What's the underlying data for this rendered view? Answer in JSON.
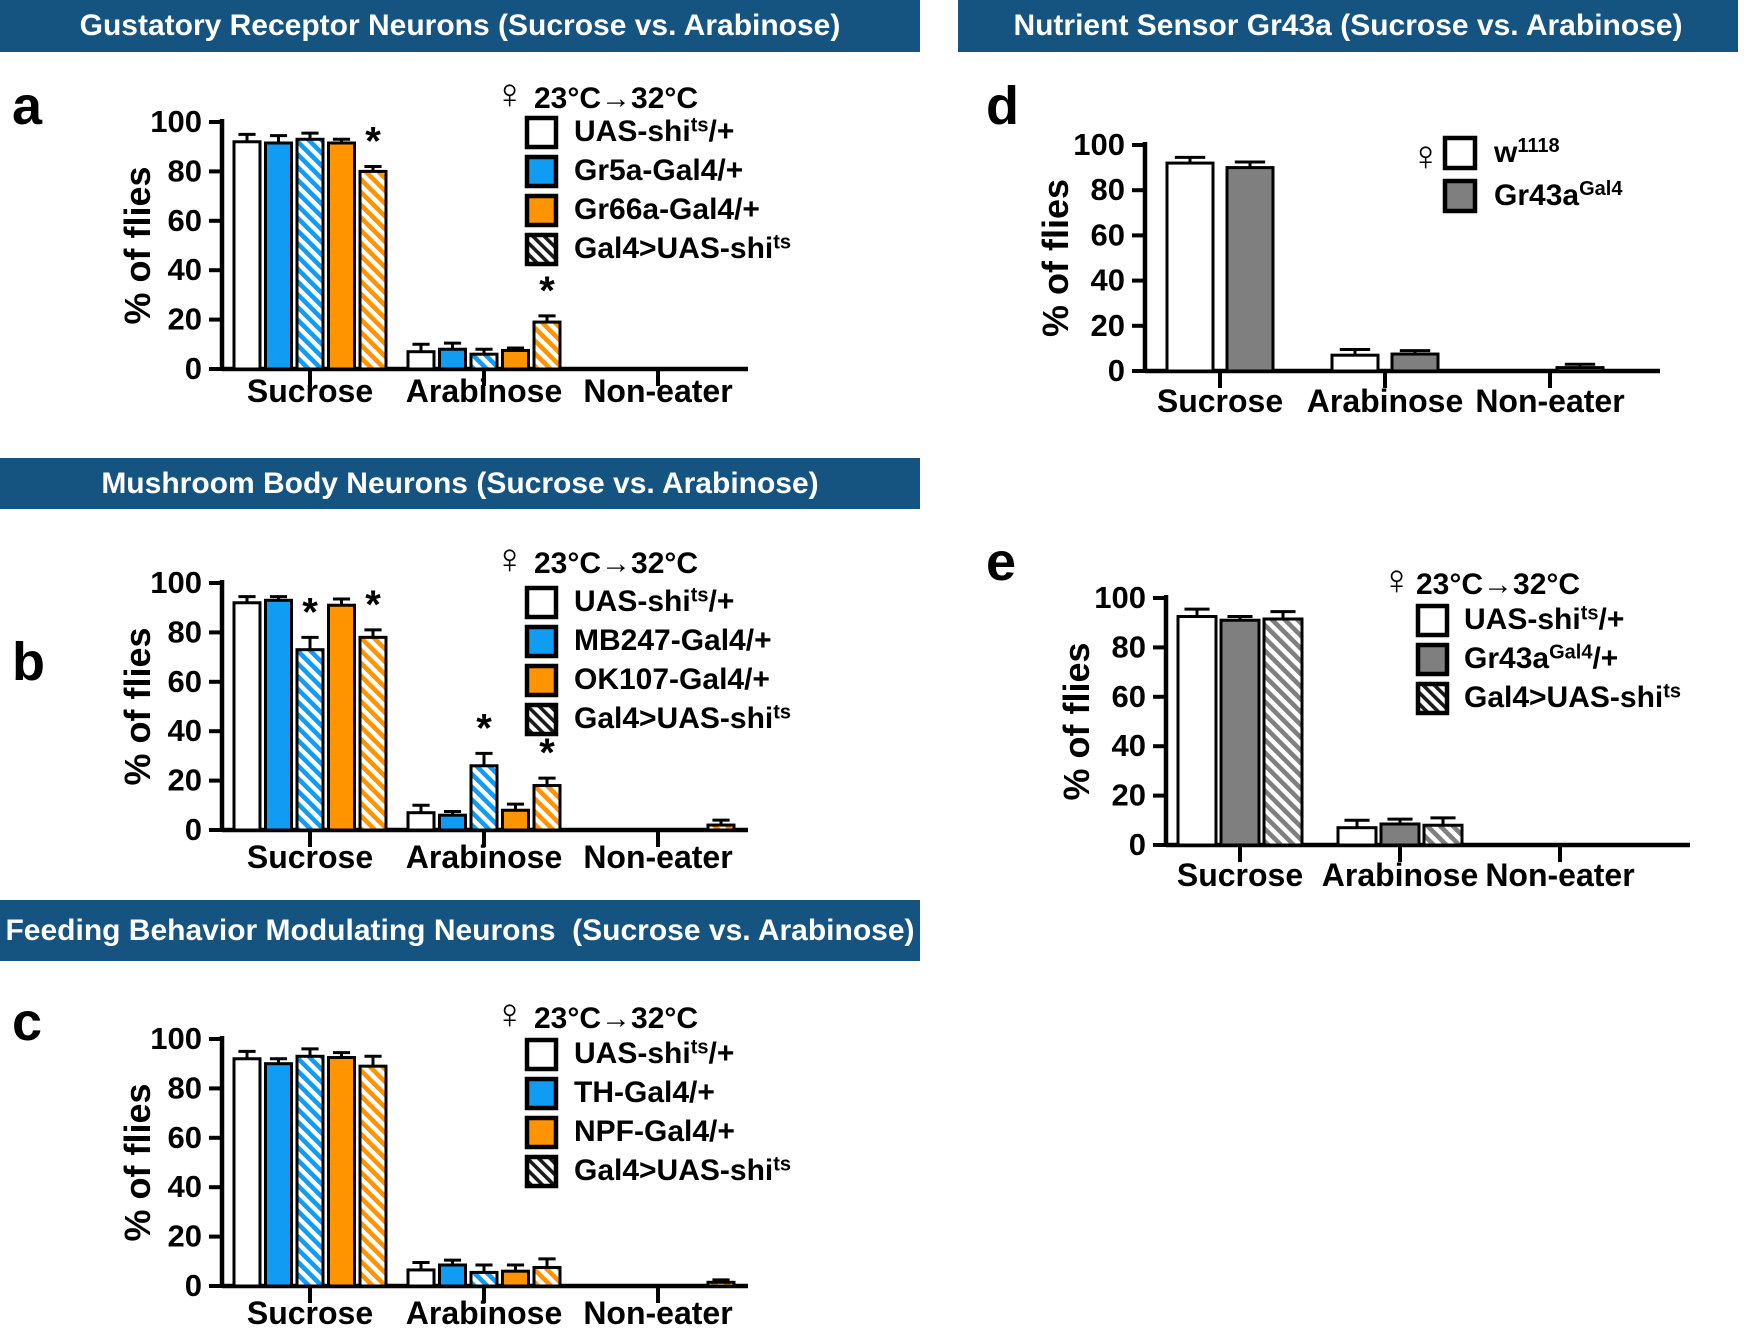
{
  "page": {
    "background": "#ffffff",
    "banner_color": "#155380",
    "banner_text_color": "#ffffff",
    "sig_marker": "*",
    "colors": {
      "blue": "#119CF4",
      "orange": "#FF9300",
      "gray": "#7F7F7F",
      "white": "#FFFFFF",
      "outline": "#000000"
    }
  },
  "chart_data": [
    {
      "type": "bar",
      "panel": "a",
      "title": "Gustatory Receptor Neurons (Sucrose vs. Arabinose)",
      "ylabel": "% of flies",
      "ylim": [
        0,
        100
      ],
      "yticks": [
        0,
        20,
        40,
        60,
        80,
        100
      ],
      "categories": [
        "Sucrose",
        "Arabinose",
        "Non-eater"
      ],
      "legend": {
        "female_symbol": "♀",
        "header": "23°C→32°C",
        "entries": [
          {
            "label": "UAS-shi^{ts}/+",
            "style": "white"
          },
          {
            "label": "Gr5a-Gal4/+",
            "style": "blue"
          },
          {
            "label": "Gr66a-Gal4/+",
            "style": "orange"
          },
          {
            "label": "Gal4>UAS-shi^{ts}",
            "style": "black-hatch"
          }
        ]
      },
      "series": [
        {
          "name": "UAS-shi^{ts}/+",
          "style": "white",
          "values": [
            92,
            7,
            0
          ],
          "errors": [
            3,
            3,
            0
          ],
          "sig": [
            false,
            false,
            false
          ]
        },
        {
          "name": "Gr5a-Gal4/+",
          "style": "blue",
          "values": [
            91.5,
            8,
            0
          ],
          "errors": [
            3,
            2.5,
            0
          ],
          "sig": [
            false,
            false,
            false
          ]
        },
        {
          "name": "Gr5a-Gal4>UAS-shi^{ts}",
          "style": "blue-hatch",
          "values": [
            93,
            6,
            0
          ],
          "errors": [
            2.5,
            2,
            0
          ],
          "sig": [
            false,
            false,
            false
          ]
        },
        {
          "name": "Gr66a-Gal4/+",
          "style": "orange",
          "values": [
            91.5,
            7.5,
            0
          ],
          "errors": [
            1.5,
            1,
            0
          ],
          "sig": [
            false,
            false,
            false
          ]
        },
        {
          "name": "Gr66a-Gal4>UAS-shi^{ts}",
          "style": "orange-hatch",
          "values": [
            80,
            19,
            0
          ],
          "errors": [
            2,
            2.5,
            0
          ],
          "sig": [
            true,
            true,
            false
          ]
        }
      ]
    },
    {
      "type": "bar",
      "panel": "b",
      "title": "Mushroom Body Neurons (Sucrose vs. Arabinose)",
      "ylabel": "% of flies",
      "ylim": [
        0,
        100
      ],
      "yticks": [
        0,
        20,
        40,
        60,
        80,
        100
      ],
      "categories": [
        "Sucrose",
        "Arabinose",
        "Non-eater"
      ],
      "legend": {
        "female_symbol": "♀",
        "header": "23°C→32°C",
        "entries": [
          {
            "label": "UAS-shi^{ts}/+",
            "style": "white"
          },
          {
            "label": "MB247-Gal4/+",
            "style": "blue"
          },
          {
            "label": "OK107-Gal4/+",
            "style": "orange"
          },
          {
            "label": "Gal4>UAS-shi^{ts}",
            "style": "black-hatch"
          }
        ]
      },
      "series": [
        {
          "name": "UAS-shi^{ts}/+",
          "style": "white",
          "values": [
            92,
            7,
            0
          ],
          "errors": [
            2.5,
            3,
            0
          ],
          "sig": [
            false,
            false,
            false
          ]
        },
        {
          "name": "MB247-Gal4/+",
          "style": "blue",
          "values": [
            93,
            6,
            0
          ],
          "errors": [
            1.5,
            1.5,
            0
          ],
          "sig": [
            false,
            false,
            false
          ]
        },
        {
          "name": "MB247-Gal4>UAS-shi^{ts}",
          "style": "blue-hatch",
          "values": [
            73,
            26,
            0
          ],
          "errors": [
            5,
            5,
            0
          ],
          "sig": [
            true,
            true,
            false
          ]
        },
        {
          "name": "OK107-Gal4/+",
          "style": "orange",
          "values": [
            91,
            8,
            0
          ],
          "errors": [
            2.5,
            2.5,
            0
          ],
          "sig": [
            false,
            false,
            false
          ]
        },
        {
          "name": "OK107-Gal4>UAS-shi^{ts}",
          "style": "orange-hatch",
          "values": [
            78,
            18,
            2
          ],
          "errors": [
            3,
            3,
            2
          ],
          "sig": [
            true,
            true,
            false
          ]
        }
      ]
    },
    {
      "type": "bar",
      "panel": "c",
      "title": "Feeding Behavior Modulating Neurons  (Sucrose vs. Arabinose)",
      "ylabel": "% of flies",
      "ylim": [
        0,
        100
      ],
      "yticks": [
        0,
        20,
        40,
        60,
        80,
        100
      ],
      "categories": [
        "Sucrose",
        "Arabinose",
        "Non-eater"
      ],
      "legend": {
        "female_symbol": "♀",
        "header": "23°C→32°C",
        "entries": [
          {
            "label": "UAS-shi^{ts}/+",
            "style": "white"
          },
          {
            "label": "TH-Gal4/+",
            "style": "blue"
          },
          {
            "label": "NPF-Gal4/+",
            "style": "orange"
          },
          {
            "label": "Gal4>UAS-shi^{ts}",
            "style": "black-hatch"
          }
        ]
      },
      "series": [
        {
          "name": "UAS-shi^{ts}/+",
          "style": "white",
          "values": [
            92,
            6.5,
            0
          ],
          "errors": [
            3,
            3,
            0
          ],
          "sig": [
            false,
            false,
            false
          ]
        },
        {
          "name": "TH-Gal4/+",
          "style": "blue",
          "values": [
            90,
            8.5,
            0
          ],
          "errors": [
            2,
            2,
            0
          ],
          "sig": [
            false,
            false,
            false
          ]
        },
        {
          "name": "TH-Gal4>UAS-shi^{ts}",
          "style": "blue-hatch",
          "values": [
            93,
            5.5,
            0
          ],
          "errors": [
            3,
            3,
            0
          ],
          "sig": [
            false,
            false,
            false
          ]
        },
        {
          "name": "NPF-Gal4/+",
          "style": "orange",
          "values": [
            92.5,
            6,
            0
          ],
          "errors": [
            2,
            2.5,
            0
          ],
          "sig": [
            false,
            false,
            false
          ]
        },
        {
          "name": "NPF-Gal4>UAS-shi^{ts}",
          "style": "orange-hatch",
          "values": [
            89,
            7.5,
            1.5
          ],
          "errors": [
            4,
            3.5,
            1
          ],
          "sig": [
            false,
            false,
            false
          ]
        }
      ]
    },
    {
      "type": "bar",
      "panel": "d",
      "title": "Nutrient Sensor Gr43a (Sucrose vs. Arabinose)",
      "ylabel": "% of flies",
      "ylim": [
        0,
        100
      ],
      "yticks": [
        0,
        20,
        40,
        60,
        80,
        100
      ],
      "categories": [
        "Sucrose",
        "Arabinose",
        "Non-eater"
      ],
      "legend": {
        "female_symbol": "♀",
        "header": "",
        "entries": [
          {
            "label": "w^{1118}",
            "style": "white"
          },
          {
            "label": "Gr43a^{Gal4}",
            "style": "gray"
          }
        ]
      },
      "series": [
        {
          "name": "w^{1118}",
          "style": "white",
          "values": [
            92,
            7,
            0
          ],
          "errors": [
            2.5,
            2.5,
            0
          ],
          "sig": [
            false,
            false,
            false
          ]
        },
        {
          "name": "Gr43a^{Gal4}",
          "style": "gray",
          "values": [
            90,
            7.5,
            1.5
          ],
          "errors": [
            2.5,
            1.5,
            1.5
          ],
          "sig": [
            false,
            false,
            false
          ]
        }
      ]
    },
    {
      "type": "bar",
      "panel": "e",
      "title": "",
      "ylabel": "% of flies",
      "ylim": [
        0,
        100
      ],
      "yticks": [
        0,
        20,
        40,
        60,
        80,
        100
      ],
      "categories": [
        "Sucrose",
        "Arabinose",
        "Non-eater"
      ],
      "legend": {
        "female_symbol": "♀",
        "header": "23°C→32°C",
        "entries": [
          {
            "label": "UAS-shi^{ts}/+",
            "style": "white"
          },
          {
            "label": "Gr43a^{Gal4}/+",
            "style": "gray"
          },
          {
            "label": "Gal4>UAS-shi^{ts}",
            "style": "black-hatch"
          }
        ]
      },
      "series": [
        {
          "name": "UAS-shi^{ts}/+",
          "style": "white",
          "values": [
            92.5,
            7,
            0
          ],
          "errors": [
            3,
            3,
            0
          ],
          "sig": [
            false,
            false,
            false
          ]
        },
        {
          "name": "Gr43a^{Gal4}/+",
          "style": "gray",
          "values": [
            91,
            8.5,
            0
          ],
          "errors": [
            1.5,
            2,
            0
          ],
          "sig": [
            false,
            false,
            false
          ]
        },
        {
          "name": "Gr43a^{Gal4}>UAS-shi^{ts}",
          "style": "gray-hatch",
          "values": [
            91.5,
            8,
            0
          ],
          "errors": [
            3,
            3,
            0
          ],
          "sig": [
            false,
            false,
            false
          ]
        }
      ]
    }
  ]
}
